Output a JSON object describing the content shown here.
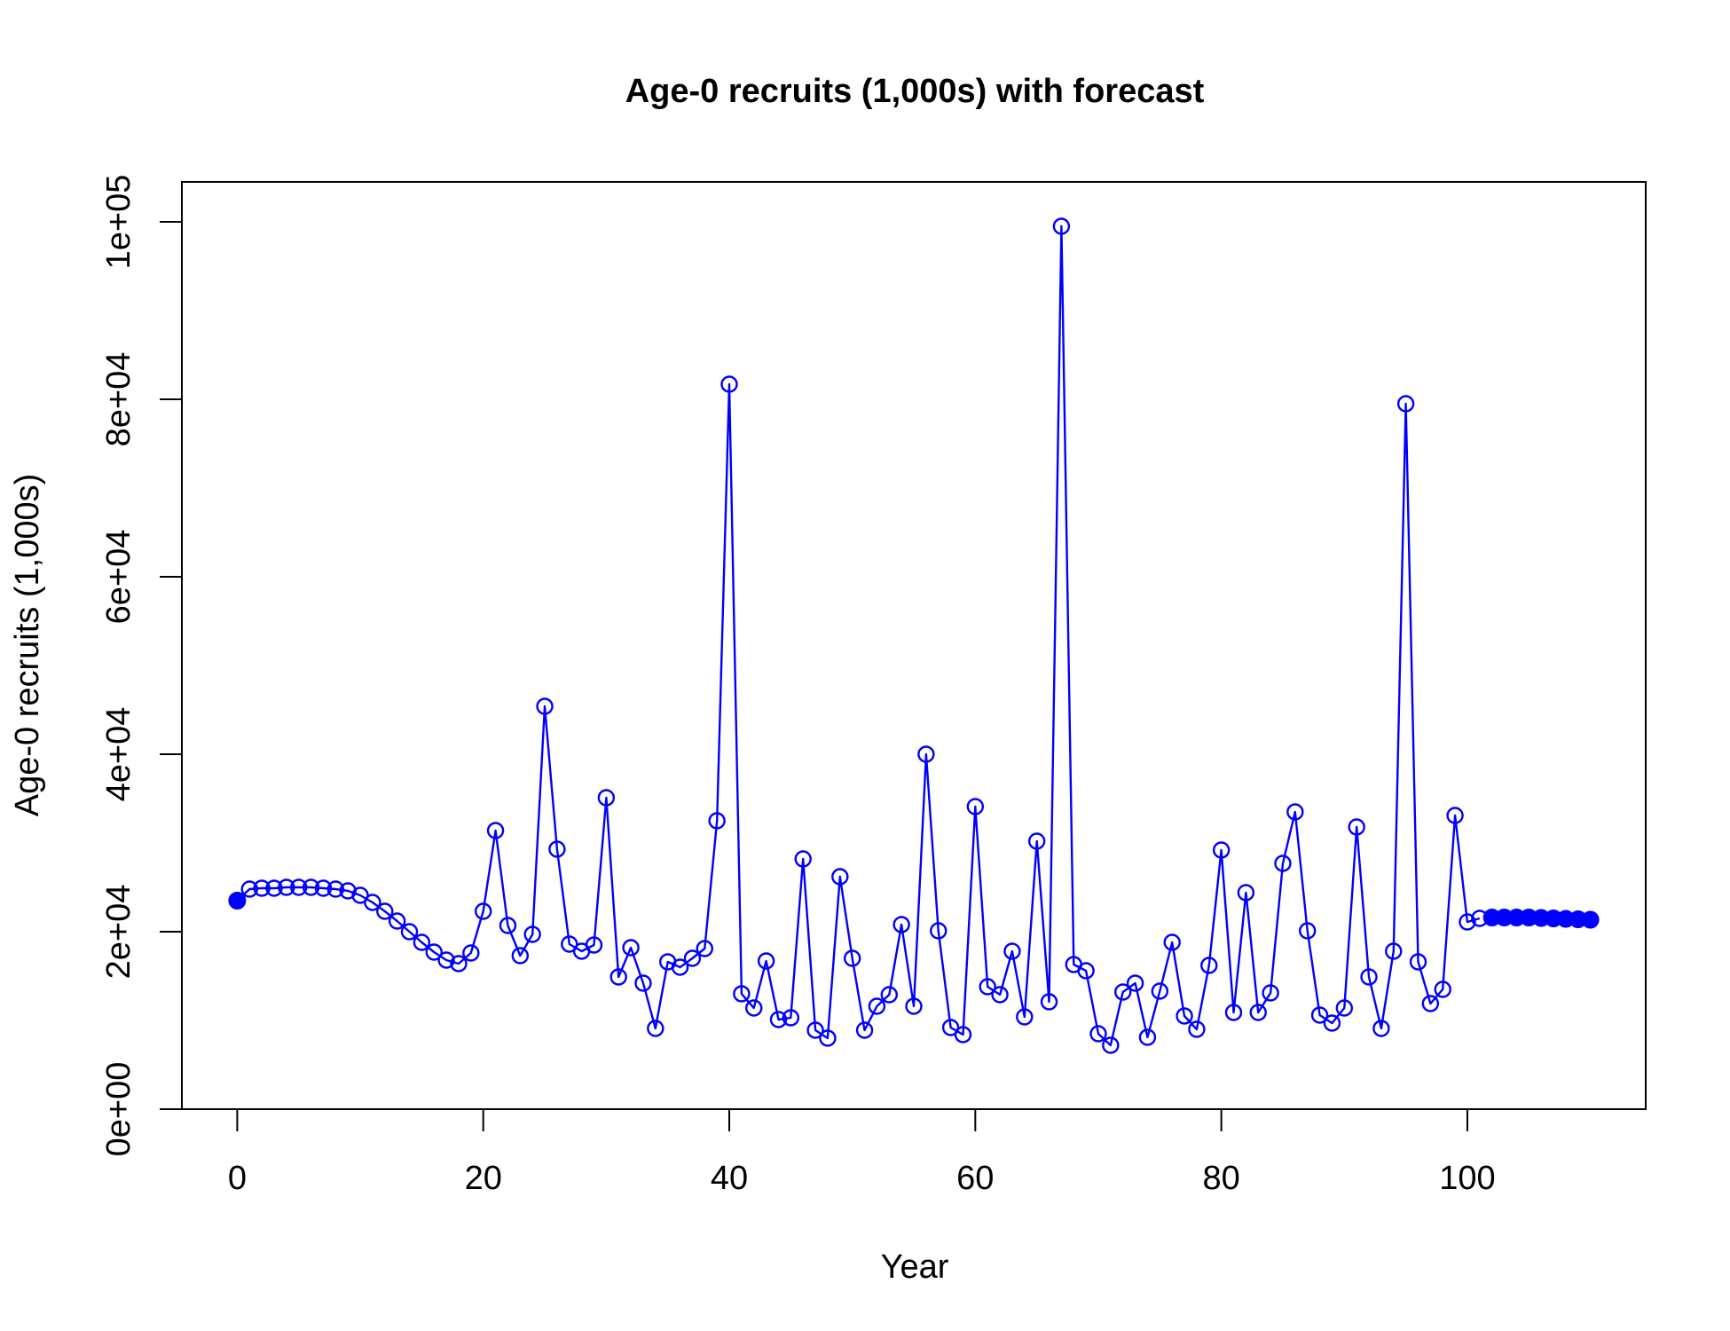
{
  "chart_data": {
    "type": "line",
    "title": "Age-0 recruits (1,000s) with forecast",
    "xlabel": "Year",
    "ylabel": "Age-0 recruits (1,000s)",
    "xlim": [
      -4.5,
      114.5
    ],
    "ylim": [
      0,
      104500
    ],
    "xticks": [
      0,
      20,
      40,
      60,
      80,
      100
    ],
    "xtick_labels": [
      "0",
      "20",
      "40",
      "60",
      "80",
      "100"
    ],
    "yticks": [
      0,
      20000,
      40000,
      60000,
      80000,
      100000
    ],
    "ytick_labels": [
      "0e+00",
      "2e+04",
      "4e+04",
      "6e+04",
      "8e+04",
      "1e+05"
    ],
    "grid": false,
    "legend": "none",
    "line_color": "#0000ff",
    "series": [
      {
        "marker": "open-circle",
        "x": [
          0,
          1,
          2,
          3,
          4,
          5,
          6,
          7,
          8,
          9,
          10,
          11,
          12,
          13,
          14,
          15,
          16,
          17,
          18,
          19,
          20,
          21,
          22,
          23,
          24,
          25,
          26,
          27,
          28,
          29,
          30,
          31,
          32,
          33,
          34,
          35,
          36,
          37,
          38,
          39,
          40,
          41,
          42,
          43,
          44,
          45,
          46,
          47,
          48,
          49,
          50,
          51,
          52,
          53,
          54,
          55,
          56,
          57,
          58,
          59,
          60,
          61,
          62,
          63,
          64,
          65,
          66,
          67,
          68,
          69,
          70,
          71,
          72,
          73,
          74,
          75,
          76,
          77,
          78,
          79,
          80,
          81,
          82,
          83,
          84,
          85,
          86,
          87,
          88,
          89,
          90,
          91,
          92,
          93,
          94,
          95,
          96,
          97,
          98,
          99,
          100,
          101
        ],
        "values": [
          23500,
          24800,
          24900,
          24900,
          25000,
          25000,
          25000,
          24900,
          24800,
          24600,
          24100,
          23300,
          22300,
          21200,
          20000,
          18800,
          17700,
          16800,
          16400,
          17600,
          22300,
          31400,
          20700,
          17300,
          19700,
          45400,
          29300,
          18600,
          17800,
          18500,
          35100,
          14900,
          18200,
          14200,
          9100,
          16600,
          16000,
          17000,
          18100,
          32500,
          81700,
          13000,
          11400,
          16700,
          10100,
          10300,
          28200,
          8900,
          8000,
          26200,
          17000,
          8900,
          11600,
          12900,
          20800,
          11600,
          40000,
          20100,
          9200,
          8400,
          34100,
          13800,
          12900,
          17800,
          10400,
          30200,
          12100,
          99500,
          16300,
          15600,
          8500,
          7200,
          13200,
          14200,
          8100,
          13300,
          18800,
          10500,
          9000,
          16200,
          29200,
          10900,
          24400,
          10900,
          13100,
          27700,
          33500,
          20100,
          10600,
          9700,
          11400,
          31800,
          14900,
          9100,
          17800,
          79500,
          16600,
          11900,
          13500,
          33100,
          21100,
          21500
        ]
      },
      {
        "marker": "filled-circle",
        "x": [
          0,
          102,
          103,
          104,
          105,
          106,
          107,
          108,
          109,
          110
        ],
        "values": [
          23500,
          21600,
          21600,
          21600,
          21600,
          21550,
          21500,
          21450,
          21400,
          21350
        ]
      }
    ]
  }
}
